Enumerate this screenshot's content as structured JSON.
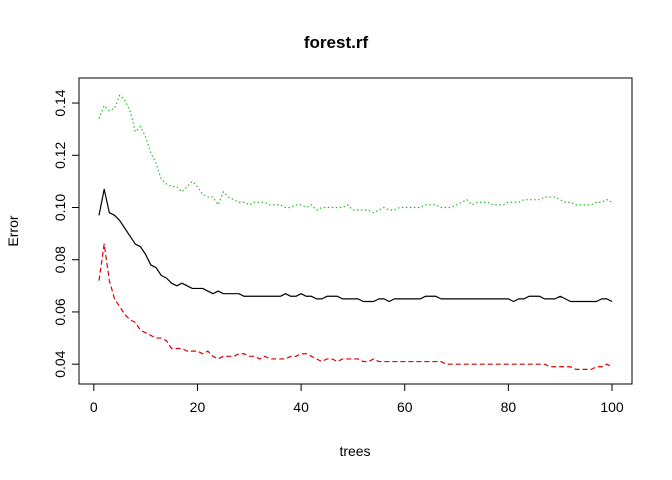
{
  "chart_data": {
    "type": "line",
    "title": "forest.rf",
    "xlabel": "trees",
    "ylabel": "Error",
    "xlim": [
      1,
      100
    ],
    "ylim": [
      0.037,
      0.145
    ],
    "xticks": [
      0,
      20,
      40,
      60,
      80,
      100
    ],
    "xtick_labels": [
      "0",
      "20",
      "40",
      "60",
      "80",
      "100"
    ],
    "yticks": [
      0.04,
      0.06,
      0.08,
      0.1,
      0.12,
      0.14
    ],
    "ytick_labels": [
      "0.04",
      "0.06",
      "0.08",
      "0.10",
      "0.12",
      "0.14"
    ],
    "grid": false,
    "legend": "none",
    "series": [
      {
        "color": "#000000",
        "linestyle": "solid",
        "values": [
          0.097,
          0.107,
          0.098,
          0.097,
          0.095,
          0.092,
          0.089,
          0.086,
          0.085,
          0.082,
          0.078,
          0.077,
          0.074,
          0.073,
          0.071,
          0.07,
          0.071,
          0.07,
          0.069,
          0.069,
          0.069,
          0.068,
          0.067,
          0.068,
          0.067,
          0.067,
          0.067,
          0.067,
          0.066,
          0.066,
          0.066,
          0.066,
          0.066,
          0.066,
          0.066,
          0.066,
          0.067,
          0.066,
          0.066,
          0.067,
          0.066,
          0.066,
          0.065,
          0.065,
          0.066,
          0.066,
          0.066,
          0.065,
          0.065,
          0.065,
          0.065,
          0.064,
          0.064,
          0.064,
          0.065,
          0.065,
          0.064,
          0.065,
          0.065,
          0.065,
          0.065,
          0.065,
          0.065,
          0.066,
          0.066,
          0.066,
          0.065,
          0.065,
          0.065,
          0.065,
          0.065,
          0.065,
          0.065,
          0.065,
          0.065,
          0.065,
          0.065,
          0.065,
          0.065,
          0.065,
          0.064,
          0.065,
          0.065,
          0.066,
          0.066,
          0.066,
          0.065,
          0.065,
          0.065,
          0.066,
          0.065,
          0.064,
          0.064,
          0.064,
          0.064,
          0.064,
          0.064,
          0.065,
          0.065,
          0.064
        ]
      },
      {
        "color": "#dd0000",
        "linestyle": "dashed",
        "values": [
          0.072,
          0.086,
          0.072,
          0.065,
          0.062,
          0.059,
          0.057,
          0.056,
          0.053,
          0.052,
          0.051,
          0.05,
          0.05,
          0.049,
          0.046,
          0.046,
          0.046,
          0.045,
          0.045,
          0.045,
          0.044,
          0.045,
          0.043,
          0.042,
          0.043,
          0.043,
          0.043,
          0.044,
          0.044,
          0.043,
          0.043,
          0.042,
          0.043,
          0.042,
          0.042,
          0.042,
          0.042,
          0.043,
          0.043,
          0.044,
          0.044,
          0.043,
          0.042,
          0.041,
          0.042,
          0.042,
          0.041,
          0.042,
          0.042,
          0.042,
          0.042,
          0.041,
          0.041,
          0.042,
          0.041,
          0.041,
          0.041,
          0.041,
          0.041,
          0.041,
          0.041,
          0.041,
          0.041,
          0.041,
          0.041,
          0.041,
          0.041,
          0.04,
          0.04,
          0.04,
          0.04,
          0.04,
          0.04,
          0.04,
          0.04,
          0.04,
          0.04,
          0.04,
          0.04,
          0.04,
          0.04,
          0.04,
          0.04,
          0.04,
          0.04,
          0.04,
          0.04,
          0.039,
          0.039,
          0.039,
          0.039,
          0.039,
          0.038,
          0.038,
          0.038,
          0.038,
          0.039,
          0.039,
          0.04,
          0.039
        ]
      },
      {
        "color": "#22bb22",
        "linestyle": "dotted",
        "values": [
          0.134,
          0.139,
          0.137,
          0.138,
          0.143,
          0.141,
          0.137,
          0.129,
          0.131,
          0.127,
          0.121,
          0.117,
          0.111,
          0.109,
          0.108,
          0.108,
          0.106,
          0.108,
          0.11,
          0.108,
          0.105,
          0.104,
          0.104,
          0.101,
          0.106,
          0.104,
          0.103,
          0.102,
          0.102,
          0.101,
          0.102,
          0.102,
          0.102,
          0.101,
          0.101,
          0.101,
          0.1,
          0.1,
          0.101,
          0.101,
          0.1,
          0.101,
          0.099,
          0.1,
          0.1,
          0.1,
          0.1,
          0.1,
          0.101,
          0.099,
          0.099,
          0.099,
          0.099,
          0.098,
          0.099,
          0.1,
          0.099,
          0.099,
          0.1,
          0.1,
          0.1,
          0.1,
          0.1,
          0.101,
          0.101,
          0.101,
          0.1,
          0.1,
          0.1,
          0.101,
          0.102,
          0.103,
          0.101,
          0.102,
          0.102,
          0.102,
          0.101,
          0.101,
          0.101,
          0.102,
          0.102,
          0.102,
          0.103,
          0.103,
          0.103,
          0.103,
          0.104,
          0.104,
          0.104,
          0.103,
          0.102,
          0.102,
          0.101,
          0.101,
          0.101,
          0.101,
          0.102,
          0.102,
          0.103,
          0.102
        ]
      }
    ]
  }
}
